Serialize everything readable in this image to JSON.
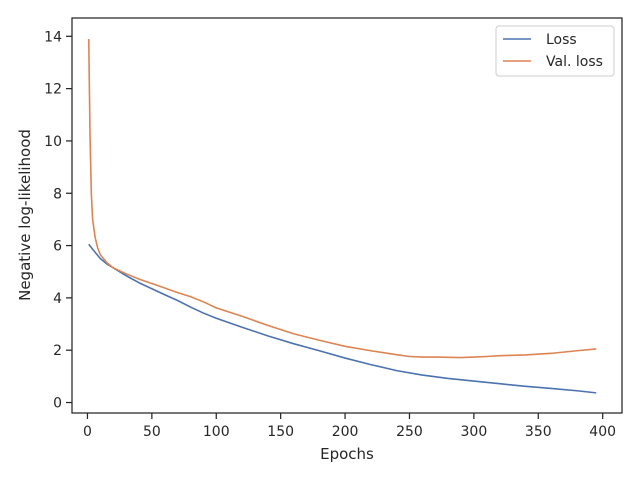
{
  "chart_data": {
    "type": "line",
    "xlabel": "Epochs",
    "ylabel": "Negative log-likelihood",
    "xlim": [
      -12,
      415
    ],
    "ylim": [
      -0.4,
      14.7
    ],
    "xticks": [
      0,
      50,
      100,
      150,
      200,
      250,
      300,
      350,
      400
    ],
    "yticks": [
      0,
      2,
      4,
      6,
      8,
      10,
      12,
      14
    ],
    "grid": false,
    "legend_position": "top-right",
    "series": [
      {
        "name": "Loss",
        "color": "#4c72b0",
        "x": [
          1,
          5,
          10,
          15,
          20,
          30,
          40,
          50,
          60,
          70,
          80,
          90,
          100,
          120,
          140,
          160,
          180,
          200,
          220,
          240,
          260,
          280,
          300,
          320,
          340,
          360,
          380,
          395
        ],
        "y": [
          6.05,
          5.8,
          5.5,
          5.3,
          5.15,
          4.85,
          4.58,
          4.35,
          4.12,
          3.9,
          3.65,
          3.42,
          3.22,
          2.88,
          2.55,
          2.25,
          1.98,
          1.7,
          1.45,
          1.22,
          1.05,
          0.92,
          0.82,
          0.72,
          0.62,
          0.54,
          0.45,
          0.37
        ]
      },
      {
        "name": "Val. loss",
        "color": "#dd8452",
        "x": [
          1,
          2,
          3,
          4,
          6,
          8,
          10,
          15,
          20,
          30,
          40,
          50,
          60,
          70,
          80,
          90,
          100,
          120,
          140,
          160,
          180,
          200,
          220,
          240,
          250,
          260,
          270,
          280,
          290,
          300,
          310,
          320,
          340,
          360,
          380,
          395
        ],
        "y": [
          13.9,
          10.2,
          8.0,
          7.0,
          6.3,
          5.9,
          5.65,
          5.35,
          5.15,
          4.92,
          4.72,
          4.55,
          4.38,
          4.2,
          4.05,
          3.85,
          3.62,
          3.3,
          2.95,
          2.63,
          2.38,
          2.15,
          1.98,
          1.83,
          1.76,
          1.74,
          1.74,
          1.73,
          1.72,
          1.74,
          1.76,
          1.79,
          1.82,
          1.88,
          1.98,
          2.05
        ]
      }
    ]
  }
}
